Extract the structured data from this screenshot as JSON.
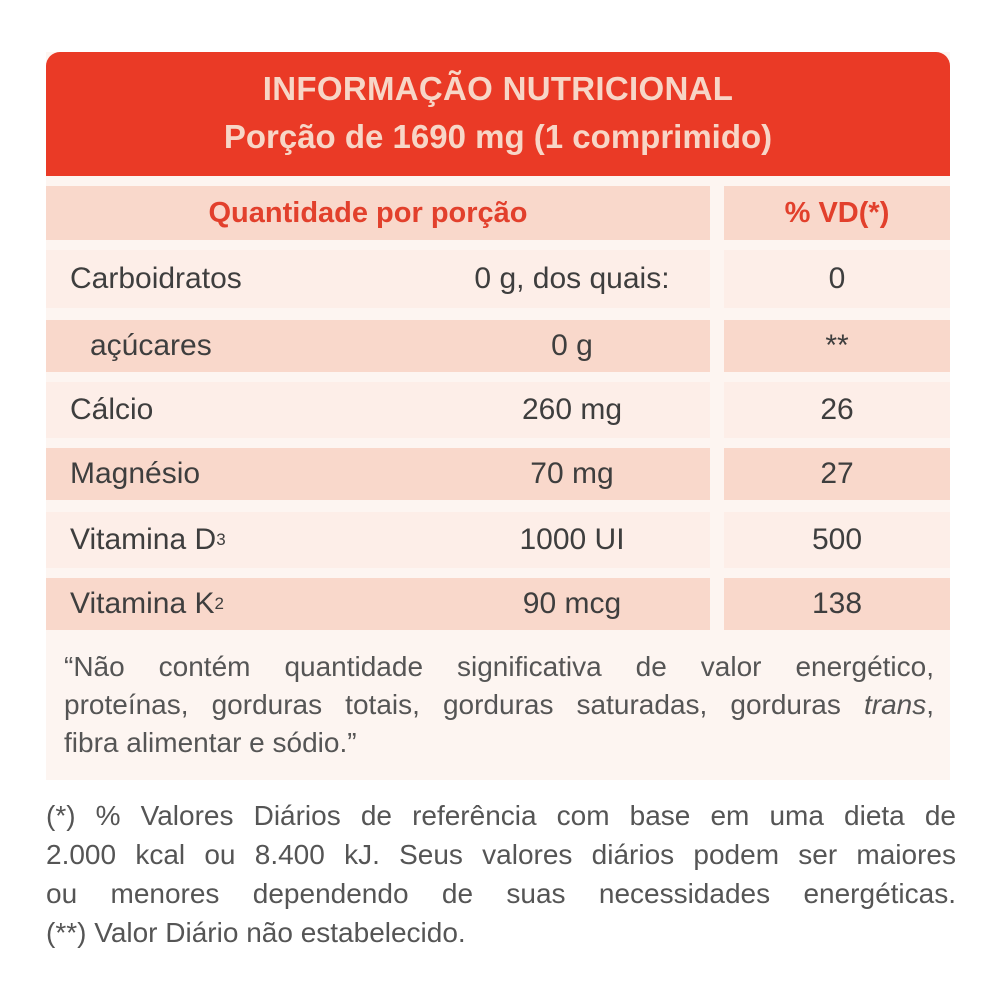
{
  "header": {
    "title": "INFORMAÇÃO NUTRICIONAL",
    "subtitle": "Porção de 1690 mg (1 comprimido)"
  },
  "table_header": {
    "quantity": "Quantidade por porção",
    "vd": "% VD(*)"
  },
  "rows": [
    {
      "name": "Carboidratos",
      "amount": "0 g, dos quais:",
      "vd": "0"
    },
    {
      "name": "açúcares",
      "amount": "0 g",
      "vd": "**"
    },
    {
      "name": "Cálcio",
      "amount": "260 mg",
      "vd": "26"
    },
    {
      "name": "Magnésio",
      "amount": "70 mg",
      "vd": "27"
    },
    {
      "name": "Vitamina D",
      "sub": "3",
      "amount": "1000 UI",
      "vd": "500"
    },
    {
      "name": "Vitamina K",
      "sub": "2",
      "amount": "90 mcg",
      "vd": "138"
    }
  ],
  "note": {
    "line1": "“Não contém quantidade significativa de valor energético,",
    "line2a": "proteínas, gorduras totais, gorduras saturadas, gorduras ",
    "line2b": "trans",
    "line2c": ",",
    "line3": "fibra alimentar  e sódio.”"
  },
  "footnote": {
    "line1": "(*) % Valores Diários de referência com base em uma dieta de",
    "line2": "2.000 kcal ou 8.400 kJ. Seus valores diários podem ser maiores",
    "line3": "ou menores dependendo de suas necessidades energéticas.",
    "line4": "(**) Valor Diário não estabelecido."
  }
}
